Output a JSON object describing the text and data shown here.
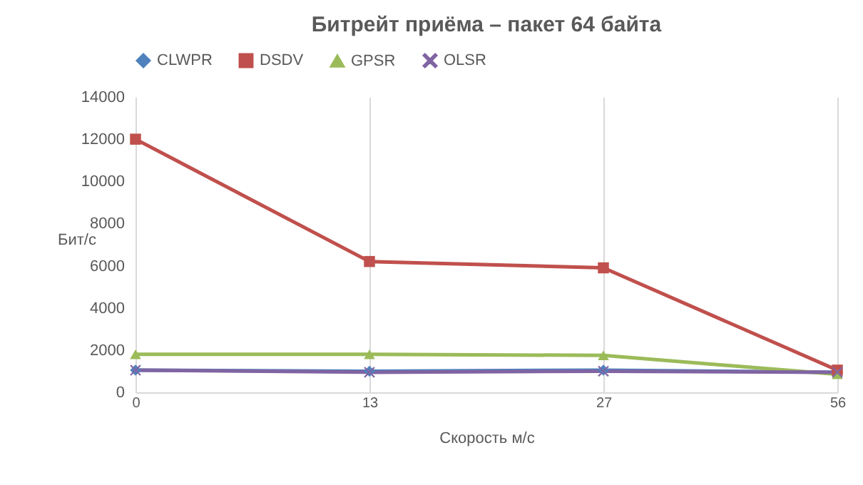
{
  "chart_data": {
    "type": "line",
    "title": "Битрейт приёма – пакет 64 байта",
    "xlabel": "Скорость м/с",
    "ylabel": "Бит/с",
    "categories": [
      "0",
      "13",
      "27",
      "56"
    ],
    "ylim": [
      0,
      14000
    ],
    "yticks": [
      0,
      2000,
      4000,
      6000,
      8000,
      10000,
      12000,
      14000
    ],
    "grid": "x",
    "legend": "top",
    "series": [
      {
        "name": "CLWPR",
        "color": "#4f81bd",
        "marker": "diamond",
        "values": [
          1050,
          1000,
          1050,
          950
        ]
      },
      {
        "name": "DSDV",
        "color": "#c0504d",
        "marker": "square",
        "values": [
          12000,
          6200,
          5900,
          1050
        ]
      },
      {
        "name": "GPSR",
        "color": "#9bbb59",
        "marker": "triangle",
        "values": [
          1800,
          1800,
          1750,
          850
        ]
      },
      {
        "name": "OLSR",
        "color": "#8064a2",
        "marker": "cross",
        "values": [
          1050,
          950,
          1000,
          950
        ]
      }
    ]
  }
}
